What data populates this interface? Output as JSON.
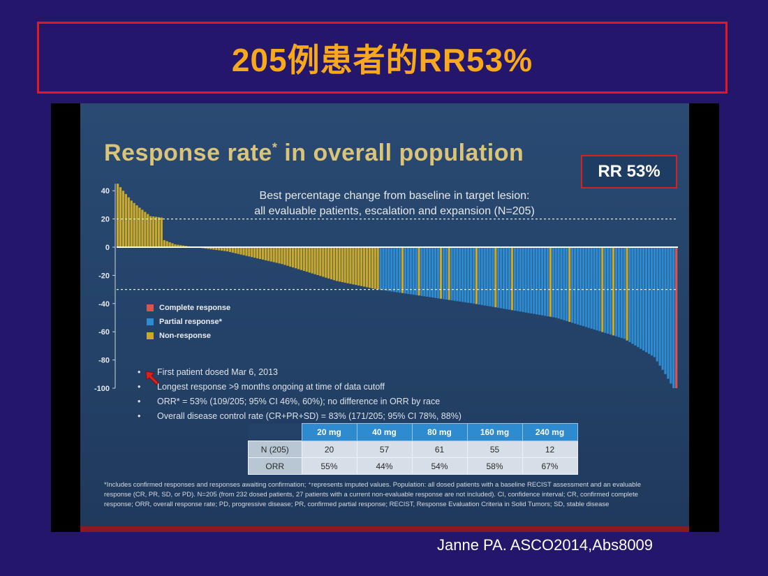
{
  "header": {
    "title": "205例患者的RR53%"
  },
  "slide": {
    "title": "Response rate",
    "title_mark": "*",
    "title_rest": " in overall population",
    "rr_badge": "RR 53%",
    "subtitle_line1": "Best percentage change from baseline in target lesion:",
    "subtitle_line2": "all evaluable patients, escalation and expansion (N=205)",
    "legend": [
      {
        "label": "Complete response",
        "color": "#d9534f"
      },
      {
        "label": "Partial response*",
        "color": "#2e8bd0"
      },
      {
        "label": "Non-response",
        "color": "#c9a82a"
      }
    ],
    "bullets": [
      "First patient dosed Mar 6, 2013",
      "Longest response >9 months ongoing at time of data cutoff",
      "ORR* = 53% (109/205; 95% CI 46%, 60%); no difference in ORR by race",
      "Overall disease control rate (CR+PR+SD) = 83% (171/205; 95% CI 78%, 88%)"
    ],
    "table": {
      "columns": [
        "20 mg",
        "40 mg",
        "80 mg",
        "160 mg",
        "240 mg"
      ],
      "rows": [
        {
          "label": "N (205)",
          "values": [
            "20",
            "57",
            "61",
            "55",
            "12"
          ]
        },
        {
          "label": "ORR",
          "values": [
            "55%",
            "44%",
            "54%",
            "58%",
            "67%"
          ]
        }
      ]
    },
    "footnote": "*Includes confirmed responses and responses awaiting confirmation; ⁺represents imputed values. Population: all dosed patients with a baseline RECIST assessment and an evaluable response (CR, PR, SD, or PD). N=205 (from 232 dosed patients, 27 patients with a current non-evaluable response are not included). CI, confidence interval; CR, confirmed complete response; ORR, overall response rate; PD, progressive disease; PR, confirmed partial response; RECIST, Response Evaluation Criteria in Solid Tumors; SD, stable disease"
  },
  "citation": "Janne PA. ASCO2014,Abs8009",
  "chart_data": {
    "type": "bar",
    "n": 205,
    "ylim": [
      -100,
      45
    ],
    "yticks": [
      40,
      20,
      0,
      -20,
      -40,
      -60,
      -80,
      -100
    ],
    "reference_lines": [
      20,
      -30
    ],
    "series_colors": {
      "complete": "#d9534f",
      "partial": "#2e8bd0",
      "non": "#c9a82a"
    },
    "waterfall_anchors": [
      {
        "index": 0,
        "value": 45
      },
      {
        "index": 2,
        "value": 40
      },
      {
        "index": 5,
        "value": 33
      },
      {
        "index": 8,
        "value": 28
      },
      {
        "index": 12,
        "value": 22
      },
      {
        "index": 16,
        "value": 21
      },
      {
        "index": 17,
        "value": 5
      },
      {
        "index": 21,
        "value": 2
      },
      {
        "index": 28,
        "value": 0
      },
      {
        "index": 40,
        "value": -3
      },
      {
        "index": 60,
        "value": -12
      },
      {
        "index": 80,
        "value": -24
      },
      {
        "index": 95,
        "value": -30
      },
      {
        "index": 130,
        "value": -40
      },
      {
        "index": 160,
        "value": -50
      },
      {
        "index": 185,
        "value": -65
      },
      {
        "index": 196,
        "value": -78
      },
      {
        "index": 200,
        "value": -90
      },
      {
        "index": 203,
        "value": -100
      },
      {
        "index": 204,
        "value": -100
      }
    ],
    "non_response_extra_indices": [
      104,
      110,
      118,
      121,
      131,
      138,
      144,
      158,
      165,
      177,
      181,
      186
    ],
    "complete_response_indices": [
      204
    ]
  }
}
